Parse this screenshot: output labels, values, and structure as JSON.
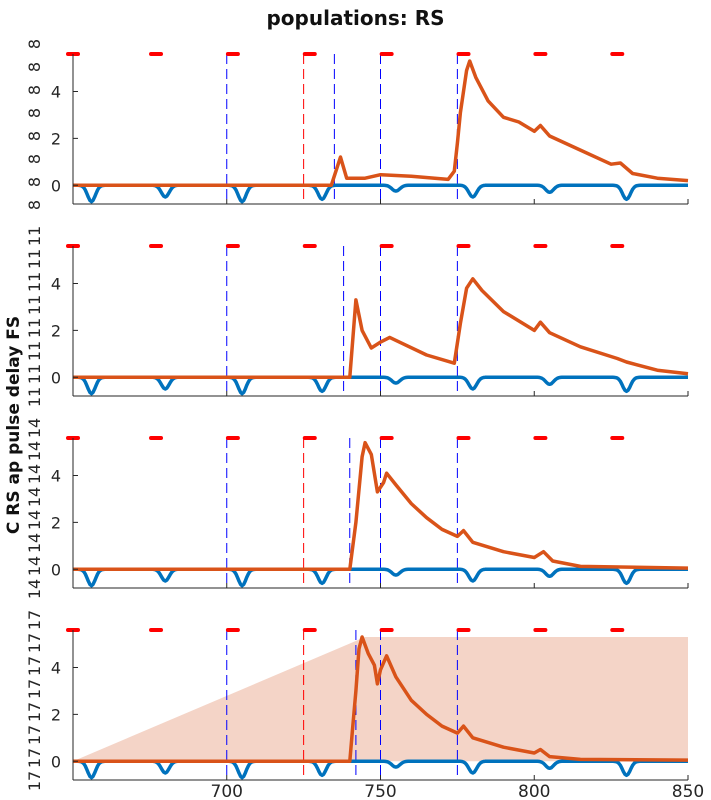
{
  "title": "populations: RS",
  "ylabel": "C RS ap pulse delay FS",
  "colors": {
    "blue_trace": "#0072bd",
    "orange_trace": "#d95319",
    "red_marks": "#ff0000",
    "blue_dash": "#0000ff",
    "red_dash": "#ff0000",
    "fill": "#f4d4c7",
    "axis": "#262626"
  },
  "chart_data": {
    "type": "line",
    "xlim": [
      650,
      850
    ],
    "ylim": [
      -0.8,
      5.6
    ],
    "x_ticks": [
      700,
      750,
      800,
      850
    ],
    "y_ticks": [
      0,
      2,
      4
    ],
    "red_marks_x": [
      650,
      677,
      702,
      727,
      752,
      777,
      802,
      827
    ],
    "red_marks_y": 5.6,
    "blue_dips": [
      {
        "x": 656,
        "depth": -0.7
      },
      {
        "x": 680,
        "depth": -0.5
      },
      {
        "x": 705,
        "depth": -0.7
      },
      {
        "x": 731,
        "depth": -0.6
      },
      {
        "x": 755,
        "depth": -0.25
      },
      {
        "x": 780,
        "depth": -0.5
      },
      {
        "x": 805,
        "depth": -0.3
      },
      {
        "x": 830,
        "depth": -0.6
      }
    ],
    "panels": [
      {
        "right_tick_labels": [
          "8",
          "8",
          "8",
          "8",
          "8",
          "8",
          "8",
          "8"
        ],
        "blue_dashes": [
          700,
          735,
          750,
          775
        ],
        "red_dashes": [
          725
        ],
        "orange": [
          [
            650,
            0
          ],
          [
            734,
            0
          ],
          [
            737,
            1.2
          ],
          [
            739,
            0.3
          ],
          [
            745,
            0.3
          ],
          [
            750,
            0.45
          ],
          [
            760,
            0.38
          ],
          [
            772,
            0.25
          ],
          [
            774,
            0.6
          ],
          [
            775,
            1.8
          ],
          [
            776,
            3.1
          ],
          [
            778,
            4.9
          ],
          [
            779,
            5.3
          ],
          [
            781,
            4.6
          ],
          [
            785,
            3.6
          ],
          [
            790,
            2.9
          ],
          [
            795,
            2.7
          ],
          [
            800,
            2.3
          ],
          [
            802,
            2.55
          ],
          [
            805,
            2.1
          ],
          [
            815,
            1.5
          ],
          [
            825,
            0.9
          ],
          [
            828,
            0.95
          ],
          [
            832,
            0.5
          ],
          [
            840,
            0.3
          ],
          [
            850,
            0.2
          ]
        ]
      },
      {
        "right_tick_labels": [
          "11",
          "11",
          "11",
          "11",
          "11",
          "11",
          "11",
          "11"
        ],
        "blue_dashes": [
          700,
          738,
          750,
          775
        ],
        "red_dashes": [],
        "orange": [
          [
            650,
            0
          ],
          [
            740,
            0
          ],
          [
            742,
            3.3
          ],
          [
            744,
            2.0
          ],
          [
            747,
            1.25
          ],
          [
            750,
            1.5
          ],
          [
            753,
            1.7
          ],
          [
            757,
            1.45
          ],
          [
            765,
            0.95
          ],
          [
            774,
            0.6
          ],
          [
            776,
            2.3
          ],
          [
            778,
            3.8
          ],
          [
            780,
            4.2
          ],
          [
            783,
            3.7
          ],
          [
            790,
            2.8
          ],
          [
            800,
            2.0
          ],
          [
            802,
            2.35
          ],
          [
            805,
            1.9
          ],
          [
            815,
            1.3
          ],
          [
            827,
            0.8
          ],
          [
            830,
            0.65
          ],
          [
            840,
            0.3
          ],
          [
            850,
            0.15
          ]
        ]
      },
      {
        "right_tick_labels": [
          "14",
          "14",
          "14",
          "14",
          "14",
          "14",
          "14",
          "14"
        ],
        "blue_dashes": [
          700,
          740,
          750,
          775
        ],
        "red_dashes": [
          725
        ],
        "orange": [
          [
            650,
            0
          ],
          [
            740,
            0
          ],
          [
            742,
            2.0
          ],
          [
            744,
            4.8
          ],
          [
            745,
            5.4
          ],
          [
            747,
            4.9
          ],
          [
            749,
            3.3
          ],
          [
            751,
            3.7
          ],
          [
            752,
            4.1
          ],
          [
            755,
            3.6
          ],
          [
            760,
            2.8
          ],
          [
            765,
            2.2
          ],
          [
            770,
            1.7
          ],
          [
            775,
            1.4
          ],
          [
            777,
            1.65
          ],
          [
            780,
            1.15
          ],
          [
            790,
            0.75
          ],
          [
            800,
            0.5
          ],
          [
            803,
            0.75
          ],
          [
            806,
            0.35
          ],
          [
            815,
            0.12
          ],
          [
            850,
            0.05
          ]
        ]
      },
      {
        "right_tick_labels": [
          "17",
          "17",
          "17",
          "17",
          "17",
          "17",
          "17",
          "17"
        ],
        "blue_dashes": [
          700,
          742,
          750,
          775
        ],
        "red_dashes": [
          725
        ],
        "fill_polygon": [
          [
            650,
            0
          ],
          [
            745,
            5.3
          ],
          [
            850,
            5.3
          ],
          [
            850,
            0
          ]
        ],
        "orange": [
          [
            650,
            0
          ],
          [
            740,
            0
          ],
          [
            741,
            1.5
          ],
          [
            742,
            3.0
          ],
          [
            743,
            4.8
          ],
          [
            744,
            5.3
          ],
          [
            746,
            4.6
          ],
          [
            748,
            4.1
          ],
          [
            749,
            3.3
          ],
          [
            750,
            3.9
          ],
          [
            752,
            4.5
          ],
          [
            755,
            3.6
          ],
          [
            760,
            2.6
          ],
          [
            765,
            2.0
          ],
          [
            770,
            1.5
          ],
          [
            775,
            1.2
          ],
          [
            777,
            1.5
          ],
          [
            780,
            1.0
          ],
          [
            790,
            0.6
          ],
          [
            800,
            0.35
          ],
          [
            802,
            0.5
          ],
          [
            805,
            0.2
          ],
          [
            815,
            0.08
          ],
          [
            850,
            0.05
          ]
        ]
      }
    ]
  }
}
